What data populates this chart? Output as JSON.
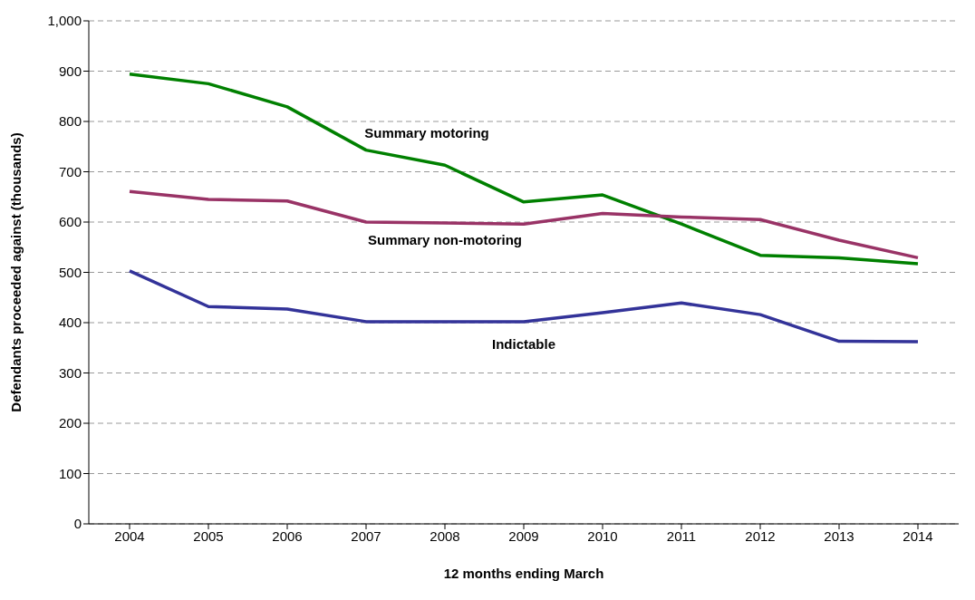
{
  "chart_data": {
    "type": "line",
    "xlabel": "12 months ending March",
    "ylabel": "Defendants proceeded against (thousands)",
    "categories": [
      "2004",
      "2005",
      "2006",
      "2007",
      "2008",
      "2009",
      "2010",
      "2011",
      "2012",
      "2013",
      "2014"
    ],
    "series": [
      {
        "name": "Summary motoring",
        "color": "#008000",
        "values": [
          894,
          875,
          829,
          743,
          713,
          640,
          654,
          596,
          534,
          529,
          517
        ]
      },
      {
        "name": "Summary non-motoring",
        "color": "#993366",
        "values": [
          661,
          645,
          642,
          600,
          598,
          596,
          617,
          610,
          605,
          564,
          529
        ]
      },
      {
        "name": "Indictable",
        "color": "#333399",
        "values": [
          503,
          432,
          427,
          402,
          402,
          402,
          420,
          439,
          416,
          363,
          362
        ]
      }
    ],
    "ylim": [
      0,
      1000
    ],
    "yticks": [
      {
        "value": 0,
        "label": "0"
      },
      {
        "value": 100,
        "label": "100"
      },
      {
        "value": 200,
        "label": "200"
      },
      {
        "value": 300,
        "label": "300"
      },
      {
        "value": 400,
        "label": "400"
      },
      {
        "value": 500,
        "label": "500"
      },
      {
        "value": 600,
        "label": "600"
      },
      {
        "value": 700,
        "label": "700"
      },
      {
        "value": 800,
        "label": "800"
      },
      {
        "value": 900,
        "label": "900"
      },
      {
        "value": 1000,
        "label": "1,000"
      }
    ],
    "grid": "y",
    "legend": false,
    "marker": "none",
    "line_style": "solid"
  }
}
